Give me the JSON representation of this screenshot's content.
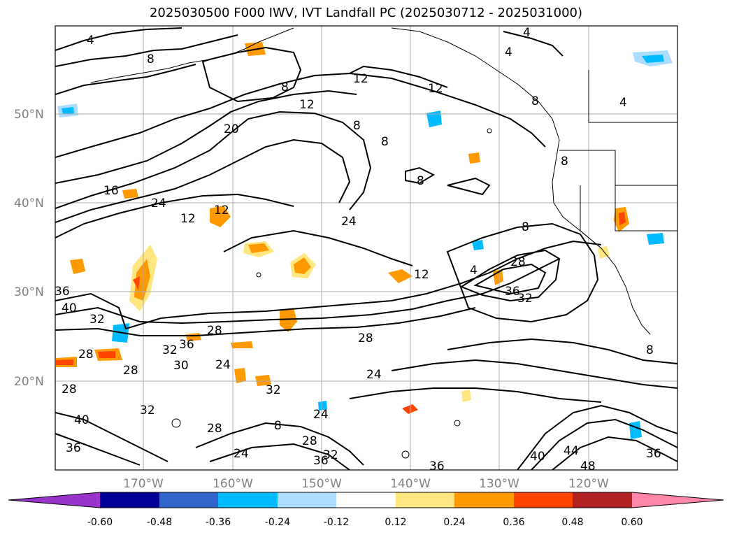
{
  "title": "2025030500 F000 IWV, IVT Landfall PC (2025030712 - 2025031000)",
  "lat_labels": [
    "50°N",
    "40°N",
    "30°N",
    "20°N"
  ],
  "lon_labels": [
    "170°W",
    "160°W",
    "150°W",
    "140°W",
    "130°W",
    "120°W"
  ],
  "contour_labels": [
    "4",
    "8",
    "4",
    "4",
    "12",
    "12",
    "8",
    "12",
    "20",
    "8",
    "8",
    "8",
    "4",
    "8",
    "8",
    "8",
    "16",
    "24",
    "12",
    "12",
    "24",
    "12",
    "28",
    "36",
    "32",
    "4",
    "36",
    "40",
    "32",
    "28",
    "36",
    "32",
    "28",
    "24",
    "28",
    "24",
    "32",
    "30",
    "28",
    "28",
    "32",
    "40",
    "36",
    "28",
    "24",
    "28",
    "24",
    "8",
    "36",
    "32",
    "36",
    "40",
    "44",
    "48",
    "36",
    "8"
  ],
  "colorbar": {
    "tick_labels": [
      "-0.60",
      "-0.48",
      "-0.36",
      "-0.24",
      "-0.12",
      "0.12",
      "0.24",
      "0.36",
      "0.48",
      "0.60"
    ],
    "colors": [
      "#9933cc",
      "#000099",
      "#3366cc",
      "#00bbff",
      "#aaddff",
      "#ffffff",
      "#ffe680",
      "#ff9900",
      "#ff4400",
      "#b22222",
      "#ff88aa"
    ]
  },
  "map": {
    "lat_range": [
      10,
      60
    ],
    "lon_range": [
      -180,
      -110
    ],
    "grid": true,
    "fields": [
      "IWV",
      "IVT Landfall PC"
    ]
  }
}
